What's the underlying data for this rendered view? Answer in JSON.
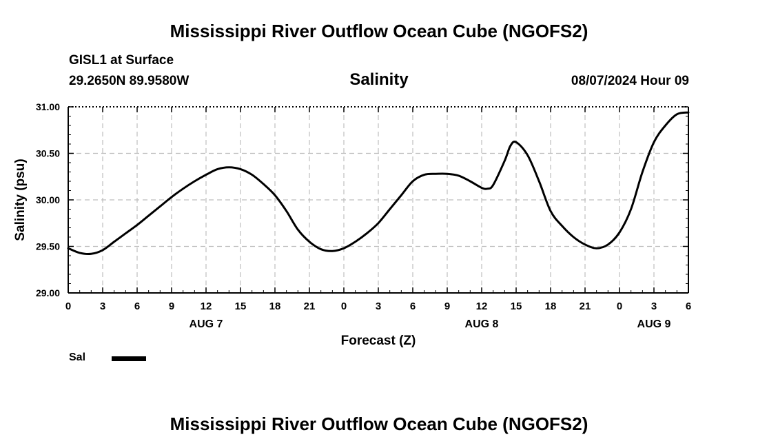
{
  "header": {
    "title": "Mississippi River Outflow Ocean Cube (NGOFS2)",
    "station": "GISL1 at Surface",
    "coords": "29.2650N  89.9580W",
    "variable": "Salinity",
    "datetime": "08/07/2024 Hour 09"
  },
  "footer": {
    "title": "Mississippi River Outflow Ocean Cube (NGOFS2)"
  },
  "legend": {
    "label": "Sal",
    "color": "#000000"
  },
  "chart_data": {
    "type": "line",
    "title": "Salinity",
    "xlabel": "Forecast (Z)",
    "ylabel": "Salinity (psu)",
    "xlim": [
      0,
      54
    ],
    "ylim": [
      29.0,
      31.0
    ],
    "y_ticks": [
      "29.00",
      "29.50",
      "30.00",
      "30.50",
      "31.00"
    ],
    "x_ticks": [
      "0",
      "3",
      "6",
      "9",
      "12",
      "15",
      "18",
      "21",
      "0",
      "3",
      "6",
      "9",
      "12",
      "15",
      "18",
      "21",
      "0",
      "3",
      "6"
    ],
    "x_tick_step_hours": 3,
    "day_labels": [
      {
        "label": "AUG 7",
        "hour": 12
      },
      {
        "label": "AUG 8",
        "hour": 36
      },
      {
        "label": "AUG 9",
        "hour": 51
      }
    ],
    "grid": true,
    "series": [
      {
        "name": "Sal",
        "color": "#000000",
        "x": [
          0,
          1,
          2,
          3,
          4,
          5,
          6,
          7,
          8,
          9,
          10,
          11,
          12,
          13,
          14,
          15,
          16,
          17,
          18,
          19,
          20,
          21,
          22,
          23,
          24,
          25,
          26,
          27,
          28,
          29,
          30,
          31,
          32,
          33,
          34,
          35,
          36,
          36.5,
          37,
          38,
          38.5,
          39,
          40,
          41,
          42,
          43,
          44,
          45,
          46,
          47,
          48,
          49,
          50,
          51,
          52,
          53,
          54
        ],
        "values": [
          29.48,
          29.43,
          29.42,
          29.46,
          29.55,
          29.64,
          29.73,
          29.83,
          29.93,
          30.03,
          30.12,
          30.2,
          30.27,
          30.33,
          30.35,
          30.33,
          30.27,
          30.17,
          30.05,
          29.88,
          29.68,
          29.55,
          29.47,
          29.45,
          29.48,
          29.55,
          29.64,
          29.75,
          29.9,
          30.05,
          30.2,
          30.27,
          30.28,
          30.28,
          30.26,
          30.2,
          30.13,
          30.12,
          30.16,
          30.42,
          30.58,
          30.62,
          30.48,
          30.2,
          29.88,
          29.72,
          29.6,
          29.52,
          29.48,
          29.52,
          29.65,
          29.9,
          30.3,
          30.62,
          30.8,
          30.92,
          30.94
        ]
      }
    ]
  }
}
